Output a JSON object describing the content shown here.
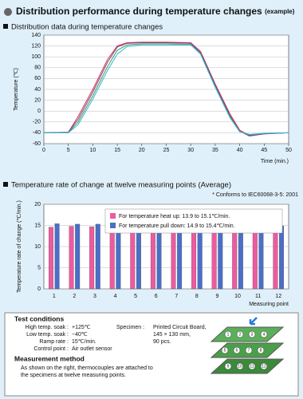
{
  "header": {
    "title": "Distribution performance during temperature changes",
    "note": "(example)"
  },
  "chart_data": [
    {
      "type": "line",
      "title": "Distribution data during temperature changes",
      "x_label": "Time (min.)",
      "y_label": "Temperature (℃)",
      "x": [
        0,
        5,
        7,
        10,
        13,
        15,
        17,
        20,
        25,
        30,
        32,
        35,
        38,
        40,
        42,
        45,
        50
      ],
      "series": [
        {
          "color": "#e0303a",
          "values": [
            -40,
            -39,
            -10,
            40,
            95,
            120,
            126,
            127,
            127,
            126,
            110,
            50,
            -5,
            -35,
            -45,
            -42,
            -40
          ]
        },
        {
          "color": "#7a3fa0",
          "values": [
            -40,
            -39,
            -15,
            35,
            90,
            118,
            125,
            126,
            126,
            125,
            108,
            48,
            -8,
            -37,
            -46,
            -42,
            -40
          ]
        },
        {
          "color": "#3aa04a",
          "values": [
            -40,
            -40,
            -20,
            28,
            82,
            112,
            122,
            124,
            124,
            123,
            106,
            45,
            -10,
            -38,
            -44,
            -41,
            -40
          ]
        },
        {
          "color": "#2fb4d8",
          "values": [
            -40,
            -40,
            -25,
            22,
            75,
            105,
            119,
            122,
            122,
            122,
            105,
            44,
            -12,
            -38,
            -43,
            -41,
            -40
          ]
        }
      ],
      "xlim": [
        0,
        50
      ],
      "xticks": [
        0,
        5,
        10,
        15,
        20,
        25,
        30,
        35,
        40,
        45,
        50
      ],
      "ylim": [
        -60,
        140
      ],
      "yticks": [
        -60,
        -40,
        -20,
        0,
        20,
        40,
        60,
        80,
        100,
        120,
        140
      ],
      "grid": true
    },
    {
      "type": "bar",
      "title": "Temperature rate of change at twelve measuring points (Average)",
      "note": "* Conforms to IEC60068-3-5: 2001",
      "x_label": "Measuring point",
      "y_label": "Temperature rate of change (℃/min.)",
      "categories": [
        "1",
        "2",
        "3",
        "4",
        "5",
        "6",
        "7",
        "8",
        "9",
        "10",
        "11",
        "12"
      ],
      "series": [
        {
          "name": "For temperature heat up: 13.9 to 15.1℃/min.",
          "color": "#ee5aa0",
          "values": [
            14.6,
            14.8,
            14.7,
            14.4,
            14.6,
            14.5,
            14.0,
            14.3,
            14.1,
            13.9,
            15.1,
            13.9
          ]
        },
        {
          "name": "For temperature pull down: 14.9 to 15.4℃/min.",
          "color": "#4a6fc8",
          "values": [
            15.4,
            15.3,
            15.3,
            15.0,
            15.2,
            15.1,
            15.0,
            15.4,
            15.0,
            14.9,
            15.4,
            14.9
          ]
        }
      ],
      "ylim": [
        0,
        20
      ],
      "yticks": [
        0,
        5,
        10,
        15,
        20
      ],
      "grid": true,
      "legend": "top-right"
    }
  ],
  "test_conditions": {
    "title": "Test conditions",
    "rows": [
      {
        "label": "High temp. soak :",
        "value": "+125℃"
      },
      {
        "label": "Low temp. soak :",
        "value": "−40℃"
      },
      {
        "label": "Ramp rate :",
        "value": "15℃/min."
      },
      {
        "label": "Control point :",
        "value": "Air outlet sensor"
      }
    ],
    "specimen": {
      "label": "Specimen :",
      "lines": [
        "Printed Circuit Board,",
        "145 × 130 mm,",
        "90 pcs."
      ]
    }
  },
  "measurement_method": {
    "title": "Measurement method",
    "lines": [
      "As shown on the right, thermocouples are attached to",
      "the specimens at twelve measuring points."
    ]
  },
  "diagram_points": [
    "1",
    "2",
    "3",
    "4",
    "5",
    "6",
    "7",
    "8",
    "9",
    "10",
    "11",
    "12"
  ]
}
